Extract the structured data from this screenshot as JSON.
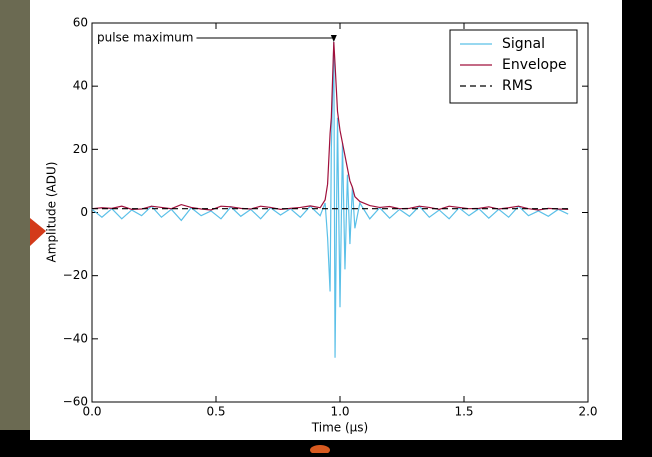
{
  "chart_data": {
    "type": "line",
    "xlabel": "Time (μs)",
    "ylabel": "Amplitude (ADU)",
    "xlim": [
      0,
      2
    ],
    "ylim": [
      -60,
      60
    ],
    "xticks": [
      {
        "value": 0,
        "label": "0.0"
      },
      {
        "value": 0.5,
        "label": "0.5"
      },
      {
        "value": 1,
        "label": "1.0"
      },
      {
        "value": 1.5,
        "label": "1.5"
      },
      {
        "value": 2,
        "label": "2.0"
      }
    ],
    "yticks": [
      {
        "value": -60,
        "label": "−60"
      },
      {
        "value": -40,
        "label": "−40"
      },
      {
        "value": -20,
        "label": "−20"
      },
      0,
      20,
      40,
      60
    ],
    "legend": "upper right",
    "x": [
      0,
      0.04,
      0.08,
      0.12,
      0.16,
      0.2,
      0.24,
      0.28,
      0.32,
      0.36,
      0.4,
      0.44,
      0.48,
      0.52,
      0.56,
      0.6,
      0.64,
      0.68,
      0.72,
      0.76,
      0.8,
      0.84,
      0.88,
      0.92,
      0.94,
      0.95,
      0.96,
      0.965,
      0.975,
      0.98,
      0.99,
      1.0,
      1.01,
      1.02,
      1.03,
      1.04,
      1.05,
      1.06,
      1.08,
      1.12,
      1.16,
      1.2,
      1.24,
      1.28,
      1.32,
      1.36,
      1.4,
      1.44,
      1.48,
      1.52,
      1.56,
      1.6,
      1.64,
      1.68,
      1.72,
      1.76,
      1.8,
      1.84,
      1.88,
      1.92
    ],
    "series": [
      {
        "name": "Signal",
        "color": "#5bc0e8",
        "values": [
          1,
          -1.5,
          1.2,
          -2,
          0.8,
          -1,
          2,
          -1.5,
          1,
          -2.5,
          1.5,
          -1,
          0.5,
          -2,
          1.8,
          -1.2,
          1,
          -2,
          1.5,
          -0.8,
          1.2,
          -1.5,
          2,
          -1,
          3,
          -8,
          -25,
          20,
          54,
          -46,
          30,
          -30,
          22,
          -18,
          12,
          -10,
          8,
          -5,
          3,
          -2,
          1.5,
          -1.8,
          1,
          -1.2,
          2,
          -1.5,
          0.8,
          -2,
          1.5,
          -1,
          1.2,
          -1.8,
          1,
          -1.5,
          2,
          -1,
          0.5,
          -1.2,
          1,
          -0.5
        ]
      },
      {
        "name": "Envelope",
        "color": "#a0103c",
        "values": [
          1.2,
          1.5,
          1.3,
          2,
          1,
          1.1,
          2,
          1.6,
          1.2,
          2.5,
          1.6,
          1.1,
          0.8,
          2,
          1.8,
          1.3,
          1.1,
          2,
          1.6,
          1,
          1.3,
          1.6,
          2.1,
          1.5,
          4,
          9,
          25,
          30,
          54,
          47,
          32,
          26,
          22,
          18,
          14,
          10,
          8,
          5,
          3.5,
          2.2,
          1.6,
          1.9,
          1.2,
          1.3,
          2,
          1.6,
          1,
          2,
          1.6,
          1.2,
          1.3,
          1.8,
          1.1,
          1.5,
          2,
          1.2,
          0.8,
          1.3,
          1.1,
          1
        ]
      },
      {
        "name": "RMS",
        "color": "#000000",
        "dashed": true,
        "x": [
          0,
          1.92
        ],
        "values": [
          1.2,
          1.2
        ]
      }
    ],
    "annotation": {
      "text": "pulse maximum",
      "x": 0.975,
      "y": 54
    }
  }
}
